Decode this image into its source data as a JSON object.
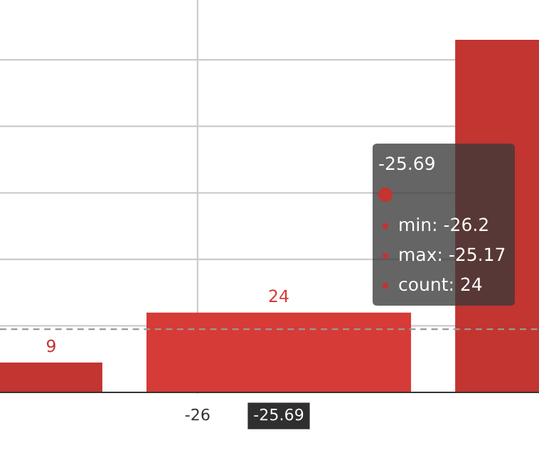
{
  "chart_data": {
    "type": "bar",
    "categories": [
      null,
      null,
      null
    ],
    "values": [
      9,
      24,
      106
    ],
    "colors": [
      "#c23531",
      "#d63b37",
      "#c23531"
    ],
    "value_labels": [
      "9",
      "24",
      null
    ],
    "ref_lines": [
      {
        "axis": "y",
        "value": 20,
        "label": null,
        "color": "#cccccc",
        "line_style": "solid"
      },
      {
        "axis": "y",
        "value": 40,
        "label": null,
        "color": "#cccccc",
        "line_style": "solid"
      },
      {
        "axis": "y",
        "value": 60,
        "label": null,
        "color": "#cccccc",
        "line_style": "solid"
      },
      {
        "axis": "y",
        "value": 80,
        "label": null,
        "color": "#cccccc",
        "line_style": "solid"
      },
      {
        "axis": "y",
        "value": 100,
        "label": null,
        "color": "#cccccc",
        "line_style": "solid"
      },
      {
        "axis": "y",
        "value": 19,
        "label": null,
        "color": "#999999",
        "line_style": "dashed"
      }
    ],
    "annotations": [
      "-26",
      "-25.69",
      "-25.69",
      "min: -26.2",
      "max: -25.17",
      "count: 24"
    ]
  }
}
